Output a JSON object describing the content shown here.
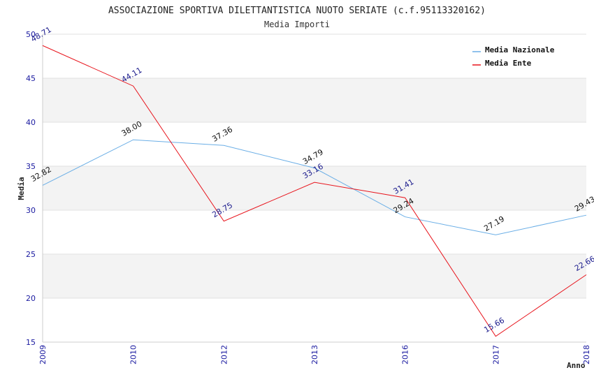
{
  "chart_data": {
    "type": "line",
    "title": "ASSOCIAZIONE SPORTIVA DILETTANTISTICA NUOTO SERIATE (c.f.95113320162)",
    "subtitle": "Media Importi",
    "xlabel": "Anno",
    "ylabel": "Media",
    "categories": [
      "2009",
      "2010",
      "2012",
      "2013",
      "2016",
      "2017",
      "2018"
    ],
    "ylim": [
      15,
      50
    ],
    "yticks": [
      15,
      20,
      25,
      30,
      35,
      40,
      45,
      50
    ],
    "grid": true,
    "legend_position": "top-right",
    "series": [
      {
        "name": "Media Nazionale",
        "color": "#6aaee6",
        "label_color": "#111111",
        "values": [
          32.82,
          38.0,
          37.36,
          34.79,
          29.24,
          27.19,
          29.43
        ],
        "labels": [
          "32.82",
          "38.00",
          "37.36",
          "34.79",
          "29.24",
          "27.19",
          "29.43"
        ]
      },
      {
        "name": "Media Ente",
        "color": "#e8141c",
        "label_color": "#1a1a8c",
        "values": [
          48.71,
          44.11,
          28.75,
          33.16,
          31.41,
          15.66,
          22.66
        ],
        "labels": [
          "48.71",
          "44.11",
          "28.75",
          "33.16",
          "31.41",
          "15.66",
          "22.66"
        ]
      }
    ]
  }
}
